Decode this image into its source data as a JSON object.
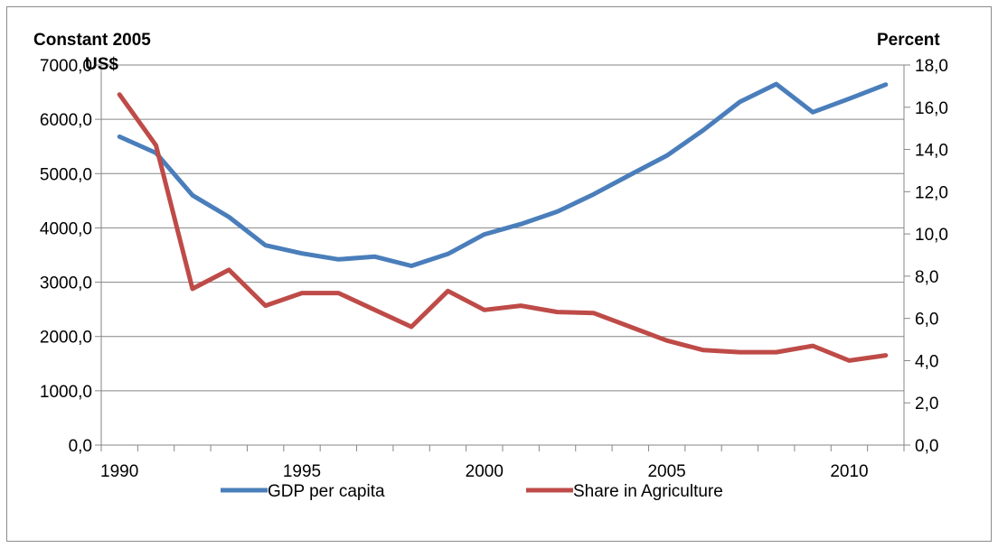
{
  "chart_data": {
    "type": "line",
    "x": [
      1990,
      1991,
      1992,
      1993,
      1994,
      1995,
      1996,
      1997,
      1998,
      1999,
      2000,
      2001,
      2002,
      2003,
      2004,
      2005,
      2006,
      2007,
      2008,
      2009,
      2010,
      2011
    ],
    "series": [
      {
        "name": "GDP per capita",
        "axis": "left",
        "color": "#4a7ebb",
        "values": [
          5680,
          5380,
          4600,
          4200,
          3680,
          3530,
          3420,
          3470,
          3300,
          3520,
          3880,
          4070,
          4300,
          4620,
          4980,
          5330,
          5800,
          6320,
          6650,
          6130,
          6380,
          6640
        ]
      },
      {
        "name": "Share in Agriculture",
        "axis": "right",
        "color": "#be4b48",
        "values": [
          16.6,
          14.2,
          7.4,
          8.3,
          6.6,
          7.2,
          7.2,
          6.4,
          5.6,
          7.3,
          6.4,
          6.6,
          6.3,
          6.25,
          5.6,
          4.95,
          4.5,
          4.4,
          4.4,
          4.7,
          4.0,
          4.25
        ]
      }
    ],
    "left_axis": {
      "title": "Constant 2005 US$",
      "title_line1": "Constant 2005",
      "title_line2": "US$",
      "min": 0,
      "max": 7000,
      "ticks": [
        "0,0",
        "1000,0",
        "2000,0",
        "3000,0",
        "4000,0",
        "5000,0",
        "6000,0",
        "7000,0"
      ]
    },
    "right_axis": {
      "title": "Percent",
      "min": 0,
      "max": 18,
      "ticks": [
        "0,0",
        "2,0",
        "4,0",
        "6,0",
        "8,0",
        "10,0",
        "12,0",
        "14,0",
        "16,0",
        "18,0"
      ]
    },
    "x_tick_labels": [
      {
        "year": 1990,
        "label": "1990"
      },
      {
        "year": 1995,
        "label": "1995"
      },
      {
        "year": 2000,
        "label": "2000"
      },
      {
        "year": 2005,
        "label": "2005"
      },
      {
        "year": 2010,
        "label": "2010"
      }
    ],
    "xlim": [
      1990,
      2011
    ],
    "grid": true,
    "legend": "bottom"
  }
}
